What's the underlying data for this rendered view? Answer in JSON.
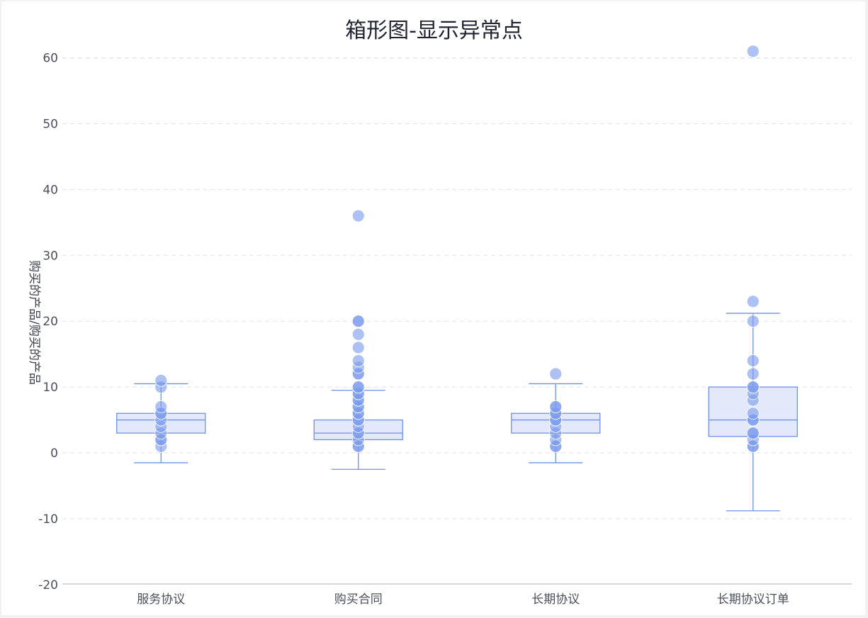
{
  "chart_data": {
    "type": "box",
    "title": "箱形图-显示异常点",
    "xlabel": "",
    "ylabel": "购买的产品/购买的产品",
    "ylim": [
      -21,
      62
    ],
    "yticks": [
      60,
      50,
      40,
      30,
      20,
      10,
      0,
      -10,
      -20
    ],
    "grid": true,
    "colors": {
      "box_fill": "#e3e9fb",
      "stroke": "#6f91e4",
      "point": "#7b9bed"
    },
    "categories": [
      "服务协议",
      "购买合同",
      "长期协议",
      "长期协议订单"
    ],
    "boxes": [
      {
        "category": "服务协议",
        "whisker_low": -1.5,
        "q1": 3,
        "median": 5,
        "q3": 6,
        "whisker_high": 10.5,
        "points": [
          1,
          2,
          2,
          3,
          4,
          5,
          6,
          6,
          7,
          10,
          11
        ]
      },
      {
        "category": "购买合同",
        "whisker_low": -2.5,
        "q1": 2,
        "median": 3,
        "q3": 5,
        "whisker_high": 9.5,
        "points": [
          1,
          1,
          2,
          3,
          3,
          4,
          5,
          5,
          6,
          6,
          7,
          7,
          8,
          8,
          9,
          9,
          10,
          10,
          12,
          12,
          13,
          14,
          16,
          18,
          20,
          20,
          36
        ]
      },
      {
        "category": "长期协议",
        "whisker_low": -1.5,
        "q1": 3,
        "median": 5,
        "q3": 6,
        "whisker_high": 10.5,
        "points": [
          1,
          1,
          2,
          3,
          4,
          5,
          5,
          6,
          6,
          7,
          7,
          12
        ]
      },
      {
        "category": "长期协议订单",
        "whisker_low": -8.8,
        "q1": 2.5,
        "median": 5,
        "q3": 10,
        "whisker_high": 21.2,
        "points": [
          1,
          1,
          2,
          3,
          3,
          5,
          5,
          6,
          8,
          9,
          10,
          10,
          12,
          14,
          20,
          23,
          61
        ]
      }
    ]
  }
}
